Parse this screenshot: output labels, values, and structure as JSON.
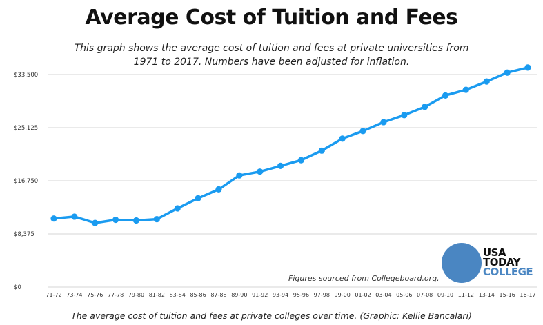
{
  "header": {
    "title": "Average Cost of Tuition and Fees",
    "subtitle": "This graph shows the average cost of tuition and fees at private universities from 1971 to 2017. Numbers have been adjusted for inflation."
  },
  "source_note": "Figures sourced from Collegeboard.org.",
  "caption": "The average cost of tuition and fees at private colleges over time. (Graphic: Kellie Bancalari)",
  "logo": {
    "line1": "USA",
    "line2": "TODAY",
    "line3": "COLLEGE",
    "circle_color": "#4a86c2",
    "text_color": "#111111",
    "accent_color": "#4a86c2"
  },
  "colors": {
    "line": "#1a9bf0",
    "grid": "#d4d4d4"
  },
  "chart_data": {
    "type": "line",
    "title": "Average Cost of Tuition and Fees",
    "xlabel": "",
    "ylabel": "",
    "ylim": [
      0,
      33500
    ],
    "yticks": [
      "$0",
      "$8,375",
      "$16,750",
      "$25,125",
      "$33,500"
    ],
    "ytick_values": [
      0,
      8375,
      16750,
      25125,
      33500
    ],
    "grid": true,
    "categories": [
      "71-72",
      "73-74",
      "75-76",
      "77-78",
      "79-80",
      "81-82",
      "83-84",
      "85-86",
      "87-88",
      "89-90",
      "91-92",
      "93-94",
      "95-96",
      "97-98",
      "99-00",
      "01-02",
      "03-04",
      "05-06",
      "07-08",
      "09-10",
      "11-12",
      "13-14",
      "15-16",
      "16-17"
    ],
    "series": [
      {
        "values": [
          10800,
          11100,
          10100,
          10600,
          10500,
          10700,
          12400,
          14000,
          15400,
          17600,
          18200,
          19100,
          20000,
          21500,
          23400,
          24600,
          26000,
          27100,
          28400,
          30200,
          31100,
          32400,
          33800,
          34600
        ]
      }
    ]
  }
}
